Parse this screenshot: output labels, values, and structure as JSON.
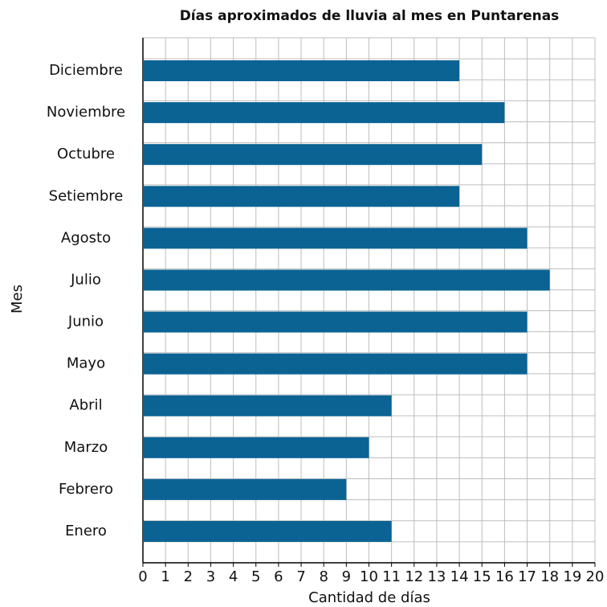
{
  "chart_data": {
    "type": "bar",
    "orientation": "horizontal",
    "title": "Días aproximados de lluvia al mes en Puntarenas",
    "x_label": "Cantidad de días",
    "y_label": "Mes",
    "categories": [
      "Enero",
      "Febrero",
      "Marzo",
      "Abril",
      "Mayo",
      "Junio",
      "Julio",
      "Agosto",
      "Setiembre",
      "Octubre",
      "Noviembre",
      "Diciembre"
    ],
    "values": [
      11,
      9,
      10,
      11,
      17,
      17,
      18,
      17,
      14,
      15,
      16,
      14
    ],
    "color": "#0b6394",
    "xlim": [
      0,
      20
    ],
    "xticks": [
      0,
      1,
      2,
      3,
      4,
      5,
      6,
      7,
      8,
      9,
      10,
      11,
      12,
      13,
      14,
      15,
      16,
      17,
      18,
      19,
      20
    ],
    "grid": true
  }
}
